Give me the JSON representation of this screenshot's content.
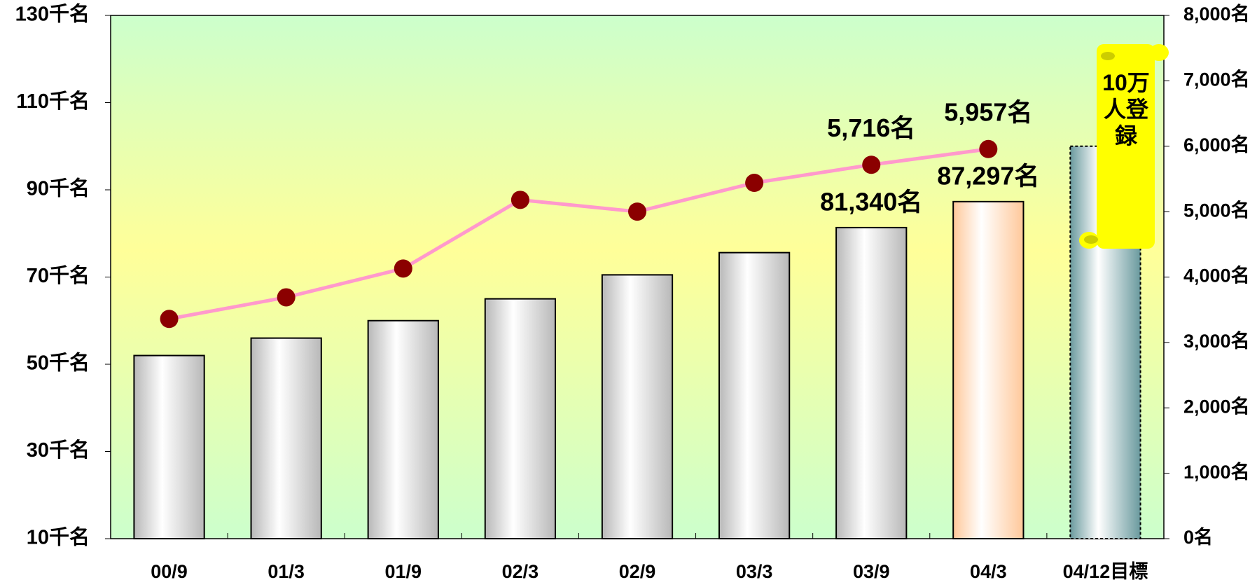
{
  "chart_data": {
    "type": "bar-line",
    "categories": [
      "00/9",
      "01/3",
      "01/9",
      "02/3",
      "02/9",
      "03/3",
      "03/9",
      "04/3",
      "04/12目標"
    ],
    "series": [
      {
        "type": "bar",
        "axis": "y",
        "colors": [
          "#b8b8b8",
          "#b8b8b8",
          "#b8b8b8",
          "#b8b8b8",
          "#b8b8b8",
          "#b8b8b8",
          "#b8b8b8",
          "#ffc89a",
          "#6a9a9e"
        ],
        "values": [
          52,
          56,
          60,
          65,
          70.5,
          75.6,
          81.34,
          87.297,
          100
        ],
        "value_labels": [
          null,
          null,
          null,
          null,
          null,
          null,
          "81,340名",
          "87,297名",
          null
        ]
      },
      {
        "type": "line",
        "axis": "y2",
        "color": "#ff99cc",
        "marker_color": "#8b0000",
        "values": [
          3360,
          3690,
          4130,
          5180,
          5000,
          5440,
          5716,
          5957,
          null
        ],
        "value_labels": [
          null,
          null,
          null,
          null,
          null,
          null,
          "5,716名",
          "5,957名",
          null
        ]
      }
    ],
    "ylim": [
      10,
      130
    ],
    "yticks": [
      {
        "value": 10,
        "label": "10千名"
      },
      {
        "value": 30,
        "label": "30千名"
      },
      {
        "value": 50,
        "label": "50千名"
      },
      {
        "value": 70,
        "label": "70千名"
      },
      {
        "value": 90,
        "label": "90千名"
      },
      {
        "value": 110,
        "label": "110千名"
      },
      {
        "value": 130,
        "label": "130千名"
      }
    ],
    "y2lim": [
      0,
      8000
    ],
    "y2ticks": [
      {
        "value": 0,
        "label": "0名"
      },
      {
        "value": 1000,
        "label": "1,000名"
      },
      {
        "value": 2000,
        "label": "2,000名"
      },
      {
        "value": 3000,
        "label": "3,000名"
      },
      {
        "value": 4000,
        "label": "4,000名"
      },
      {
        "value": 5000,
        "label": "5,000名"
      },
      {
        "value": 6000,
        "label": "6,000名"
      },
      {
        "value": 7000,
        "label": "7,000名"
      },
      {
        "value": 8000,
        "label": "8,000名"
      }
    ],
    "annotation": "10万人登録"
  }
}
